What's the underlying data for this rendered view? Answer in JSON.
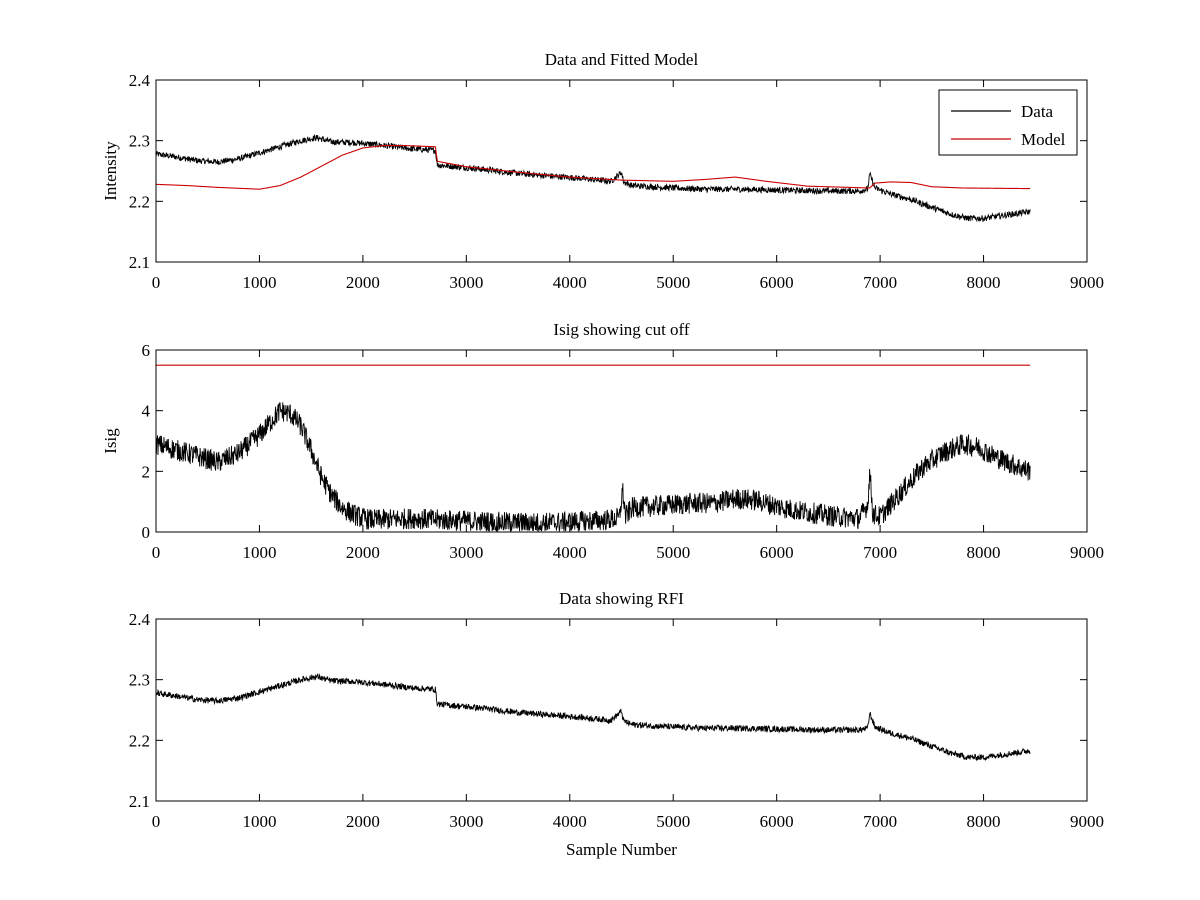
{
  "chart_data": [
    {
      "type": "line",
      "title": "Data and Fitted Model",
      "xlabel": "",
      "ylabel": "Intensity",
      "xlim": [
        0,
        9000
      ],
      "ylim": [
        2.1,
        2.4
      ],
      "xticks": [
        "0",
        "1000",
        "2000",
        "3000",
        "4000",
        "5000",
        "6000",
        "7000",
        "8000",
        "9000"
      ],
      "yticks": [
        "2.1",
        "2.2",
        "2.3",
        "2.4"
      ],
      "legend": {
        "position": "top-right",
        "entries": [
          "Data",
          "Model"
        ]
      },
      "series": [
        {
          "name": "Data",
          "color": "#000000",
          "x": [
            0,
            200,
            400,
            600,
            800,
            1000,
            1200,
            1400,
            1550,
            1700,
            1900,
            2100,
            2300,
            2500,
            2700,
            2720,
            2900,
            3100,
            3300,
            3500,
            3800,
            4100,
            4400,
            4500,
            4520,
            4600,
            4800,
            5000,
            5300,
            5600,
            5900,
            6200,
            6500,
            6800,
            6880,
            6900,
            6950,
            7100,
            7300,
            7500,
            7700,
            7850,
            8000,
            8200,
            8450
          ],
          "y": [
            2.278,
            2.273,
            2.267,
            2.265,
            2.27,
            2.28,
            2.29,
            2.3,
            2.305,
            2.298,
            2.297,
            2.294,
            2.29,
            2.286,
            2.284,
            2.26,
            2.257,
            2.254,
            2.25,
            2.246,
            2.242,
            2.238,
            2.233,
            2.248,
            2.232,
            2.226,
            2.224,
            2.222,
            2.22,
            2.22,
            2.219,
            2.218,
            2.217,
            2.217,
            2.22,
            2.245,
            2.222,
            2.212,
            2.203,
            2.19,
            2.178,
            2.172,
            2.172,
            2.177,
            2.183
          ]
        },
        {
          "name": "Model",
          "color": "#cc0000",
          "x": [
            0,
            300,
            600,
            1000,
            1200,
            1400,
            1600,
            1800,
            2000,
            2200,
            2400,
            2700,
            2720,
            3000,
            3500,
            4000,
            4500,
            5000,
            5300,
            5600,
            5900,
            6300,
            6700,
            6900,
            6950,
            7100,
            7300,
            7500,
            7800,
            8450
          ],
          "y": [
            2.228,
            2.226,
            2.223,
            2.22,
            2.226,
            2.24,
            2.258,
            2.276,
            2.288,
            2.292,
            2.292,
            2.29,
            2.266,
            2.257,
            2.248,
            2.24,
            2.235,
            2.233,
            2.236,
            2.24,
            2.233,
            2.225,
            2.223,
            2.222,
            2.23,
            2.232,
            2.231,
            2.224,
            2.222,
            2.221
          ]
        }
      ]
    },
    {
      "type": "line",
      "title": "Isig showing cut off",
      "xlabel": "",
      "ylabel": "Isig",
      "xlim": [
        0,
        9000
      ],
      "ylim": [
        0,
        6
      ],
      "xticks": [
        "0",
        "1000",
        "2000",
        "3000",
        "4000",
        "5000",
        "6000",
        "7000",
        "8000",
        "9000"
      ],
      "yticks": [
        "0",
        "2",
        "4",
        "6"
      ],
      "series": [
        {
          "color": "#000000",
          "x": [
            0,
            200,
            400,
            600,
            800,
            1000,
            1100,
            1200,
            1300,
            1400,
            1500,
            1600,
            1700,
            1800,
            1900,
            2000,
            2100,
            2300,
            2500,
            2700,
            2900,
            3100,
            3300,
            3500,
            3700,
            3900,
            4100,
            4300,
            4480,
            4510,
            4540,
            4600,
            4800,
            5000,
            5200,
            5400,
            5600,
            5800,
            6000,
            6200,
            6400,
            6600,
            6800,
            6880,
            6900,
            6930,
            7000,
            7200,
            7400,
            7600,
            7800,
            7950,
            8100,
            8300,
            8450
          ],
          "y": [
            2.9,
            2.7,
            2.5,
            2.3,
            2.6,
            3.2,
            3.6,
            4.0,
            3.9,
            3.5,
            2.7,
            1.8,
            1.2,
            0.8,
            0.6,
            0.45,
            0.4,
            0.42,
            0.45,
            0.4,
            0.38,
            0.35,
            0.32,
            0.3,
            0.3,
            0.32,
            0.35,
            0.38,
            0.45,
            1.4,
            0.5,
            0.8,
            0.85,
            0.9,
            0.95,
            0.95,
            1.1,
            1.05,
            0.85,
            0.7,
            0.6,
            0.5,
            0.45,
            0.9,
            2.0,
            0.6,
            0.5,
            1.3,
            2.1,
            2.6,
            2.9,
            2.8,
            2.5,
            2.2,
            2.0
          ]
        },
        {
          "color": "#cc0000",
          "x": [
            0,
            8450
          ],
          "y": [
            5.5,
            5.5
          ]
        }
      ]
    },
    {
      "type": "line",
      "title": "Data showing RFI",
      "xlabel": "Sample Number",
      "ylabel": "",
      "xlim": [
        0,
        9000
      ],
      "ylim": [
        2.1,
        2.4
      ],
      "xticks": [
        "0",
        "1000",
        "2000",
        "3000",
        "4000",
        "5000",
        "6000",
        "7000",
        "8000",
        "9000"
      ],
      "yticks": [
        "2.1",
        "2.2",
        "2.3",
        "2.4"
      ],
      "series": [
        {
          "color": "#000000",
          "x": [
            0,
            200,
            400,
            600,
            800,
            1000,
            1200,
            1400,
            1550,
            1700,
            1900,
            2100,
            2300,
            2500,
            2700,
            2720,
            2900,
            3100,
            3300,
            3500,
            3800,
            4100,
            4400,
            4500,
            4520,
            4600,
            4800,
            5000,
            5300,
            5600,
            5900,
            6200,
            6500,
            6800,
            6880,
            6900,
            6950,
            7100,
            7300,
            7500,
            7700,
            7850,
            8000,
            8200,
            8450
          ],
          "y": [
            2.278,
            2.273,
            2.267,
            2.265,
            2.27,
            2.28,
            2.29,
            2.3,
            2.305,
            2.298,
            2.297,
            2.294,
            2.29,
            2.286,
            2.284,
            2.26,
            2.257,
            2.254,
            2.25,
            2.246,
            2.242,
            2.238,
            2.233,
            2.248,
            2.232,
            2.226,
            2.224,
            2.222,
            2.22,
            2.22,
            2.219,
            2.218,
            2.217,
            2.217,
            2.22,
            2.245,
            2.222,
            2.212,
            2.203,
            2.19,
            2.178,
            2.172,
            2.172,
            2.177,
            2.183
          ]
        }
      ]
    }
  ]
}
